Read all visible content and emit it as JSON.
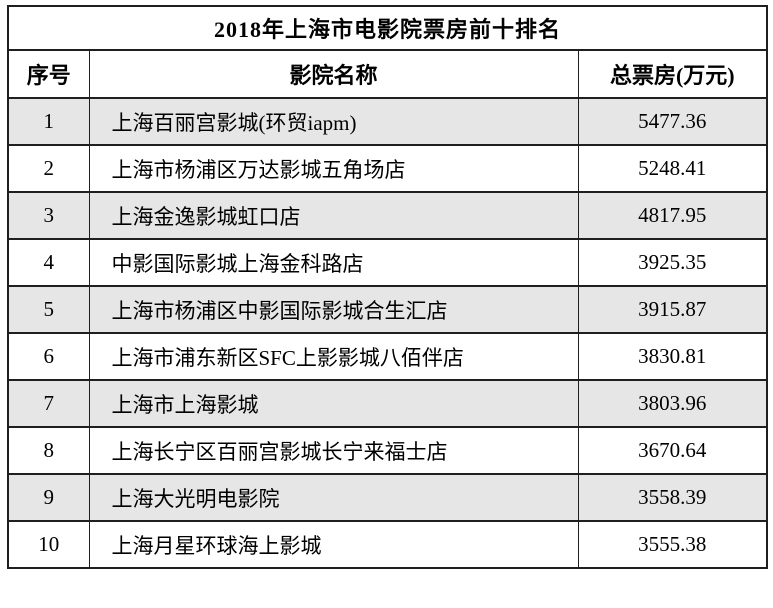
{
  "table": {
    "title": "2018年上海市电影院票房前十排名",
    "columns": {
      "rank": "序号",
      "name": "影院名称",
      "box_office": "总票房(万元)"
    },
    "rows": [
      {
        "rank": "1",
        "name": "上海百丽宫影城(环贸iapm)",
        "box_office": "5477.36"
      },
      {
        "rank": "2",
        "name": "上海市杨浦区万达影城五角场店",
        "box_office": "5248.41"
      },
      {
        "rank": "3",
        "name": "上海金逸影城虹口店",
        "box_office": "4817.95"
      },
      {
        "rank": "4",
        "name": "中影国际影城上海金科路店",
        "box_office": "3925.35"
      },
      {
        "rank": "5",
        "name": "上海市杨浦区中影国际影城合生汇店",
        "box_office": "3915.87"
      },
      {
        "rank": "6",
        "name": "上海市浦东新区SFC上影影城八佰伴店",
        "box_office": "3830.81"
      },
      {
        "rank": "7",
        "name": "上海市上海影城",
        "box_office": "3803.96"
      },
      {
        "rank": "8",
        "name": "上海长宁区百丽宫影城长宁来福士店",
        "box_office": "3670.64"
      },
      {
        "rank": "9",
        "name": "上海大光明电影院",
        "box_office": "3558.39"
      },
      {
        "rank": "10",
        "name": "上海月星环球海上影城",
        "box_office": "3555.38"
      }
    ],
    "colors": {
      "border": "#1f1f1f",
      "stripe_bg": "#e6e6e6",
      "text": "#000000",
      "background": "#ffffff"
    }
  }
}
